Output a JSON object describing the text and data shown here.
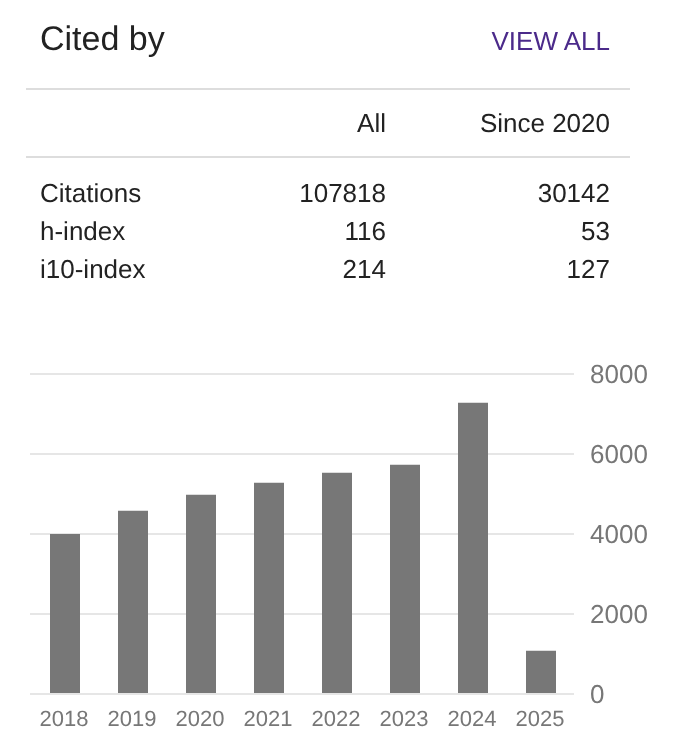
{
  "chart_data": [
    {
      "type": "other",
      "title": "Cited by",
      "annotations": [
        "VIEW ALL"
      ],
      "categories": [
        "All",
        "Since 2020"
      ],
      "y_categories": [
        "Citations",
        "h-index",
        "i10-index"
      ],
      "cell_labels": [
        [
          "107818",
          "30142"
        ],
        [
          "116",
          "53"
        ],
        [
          "214",
          "127"
        ]
      ]
    },
    {
      "type": "bar",
      "categories": [
        "2018",
        "2019",
        "2020",
        "2021",
        "2022",
        "2023",
        "2024",
        "2025"
      ],
      "values": [
        4000,
        4580,
        4980,
        5280,
        5530,
        5730,
        7280,
        1080
      ],
      "color": "#777777",
      "ylim": [
        0,
        8000
      ],
      "yticks": [
        0,
        2000,
        4000,
        6000,
        8000
      ],
      "grid": "y"
    }
  ]
}
